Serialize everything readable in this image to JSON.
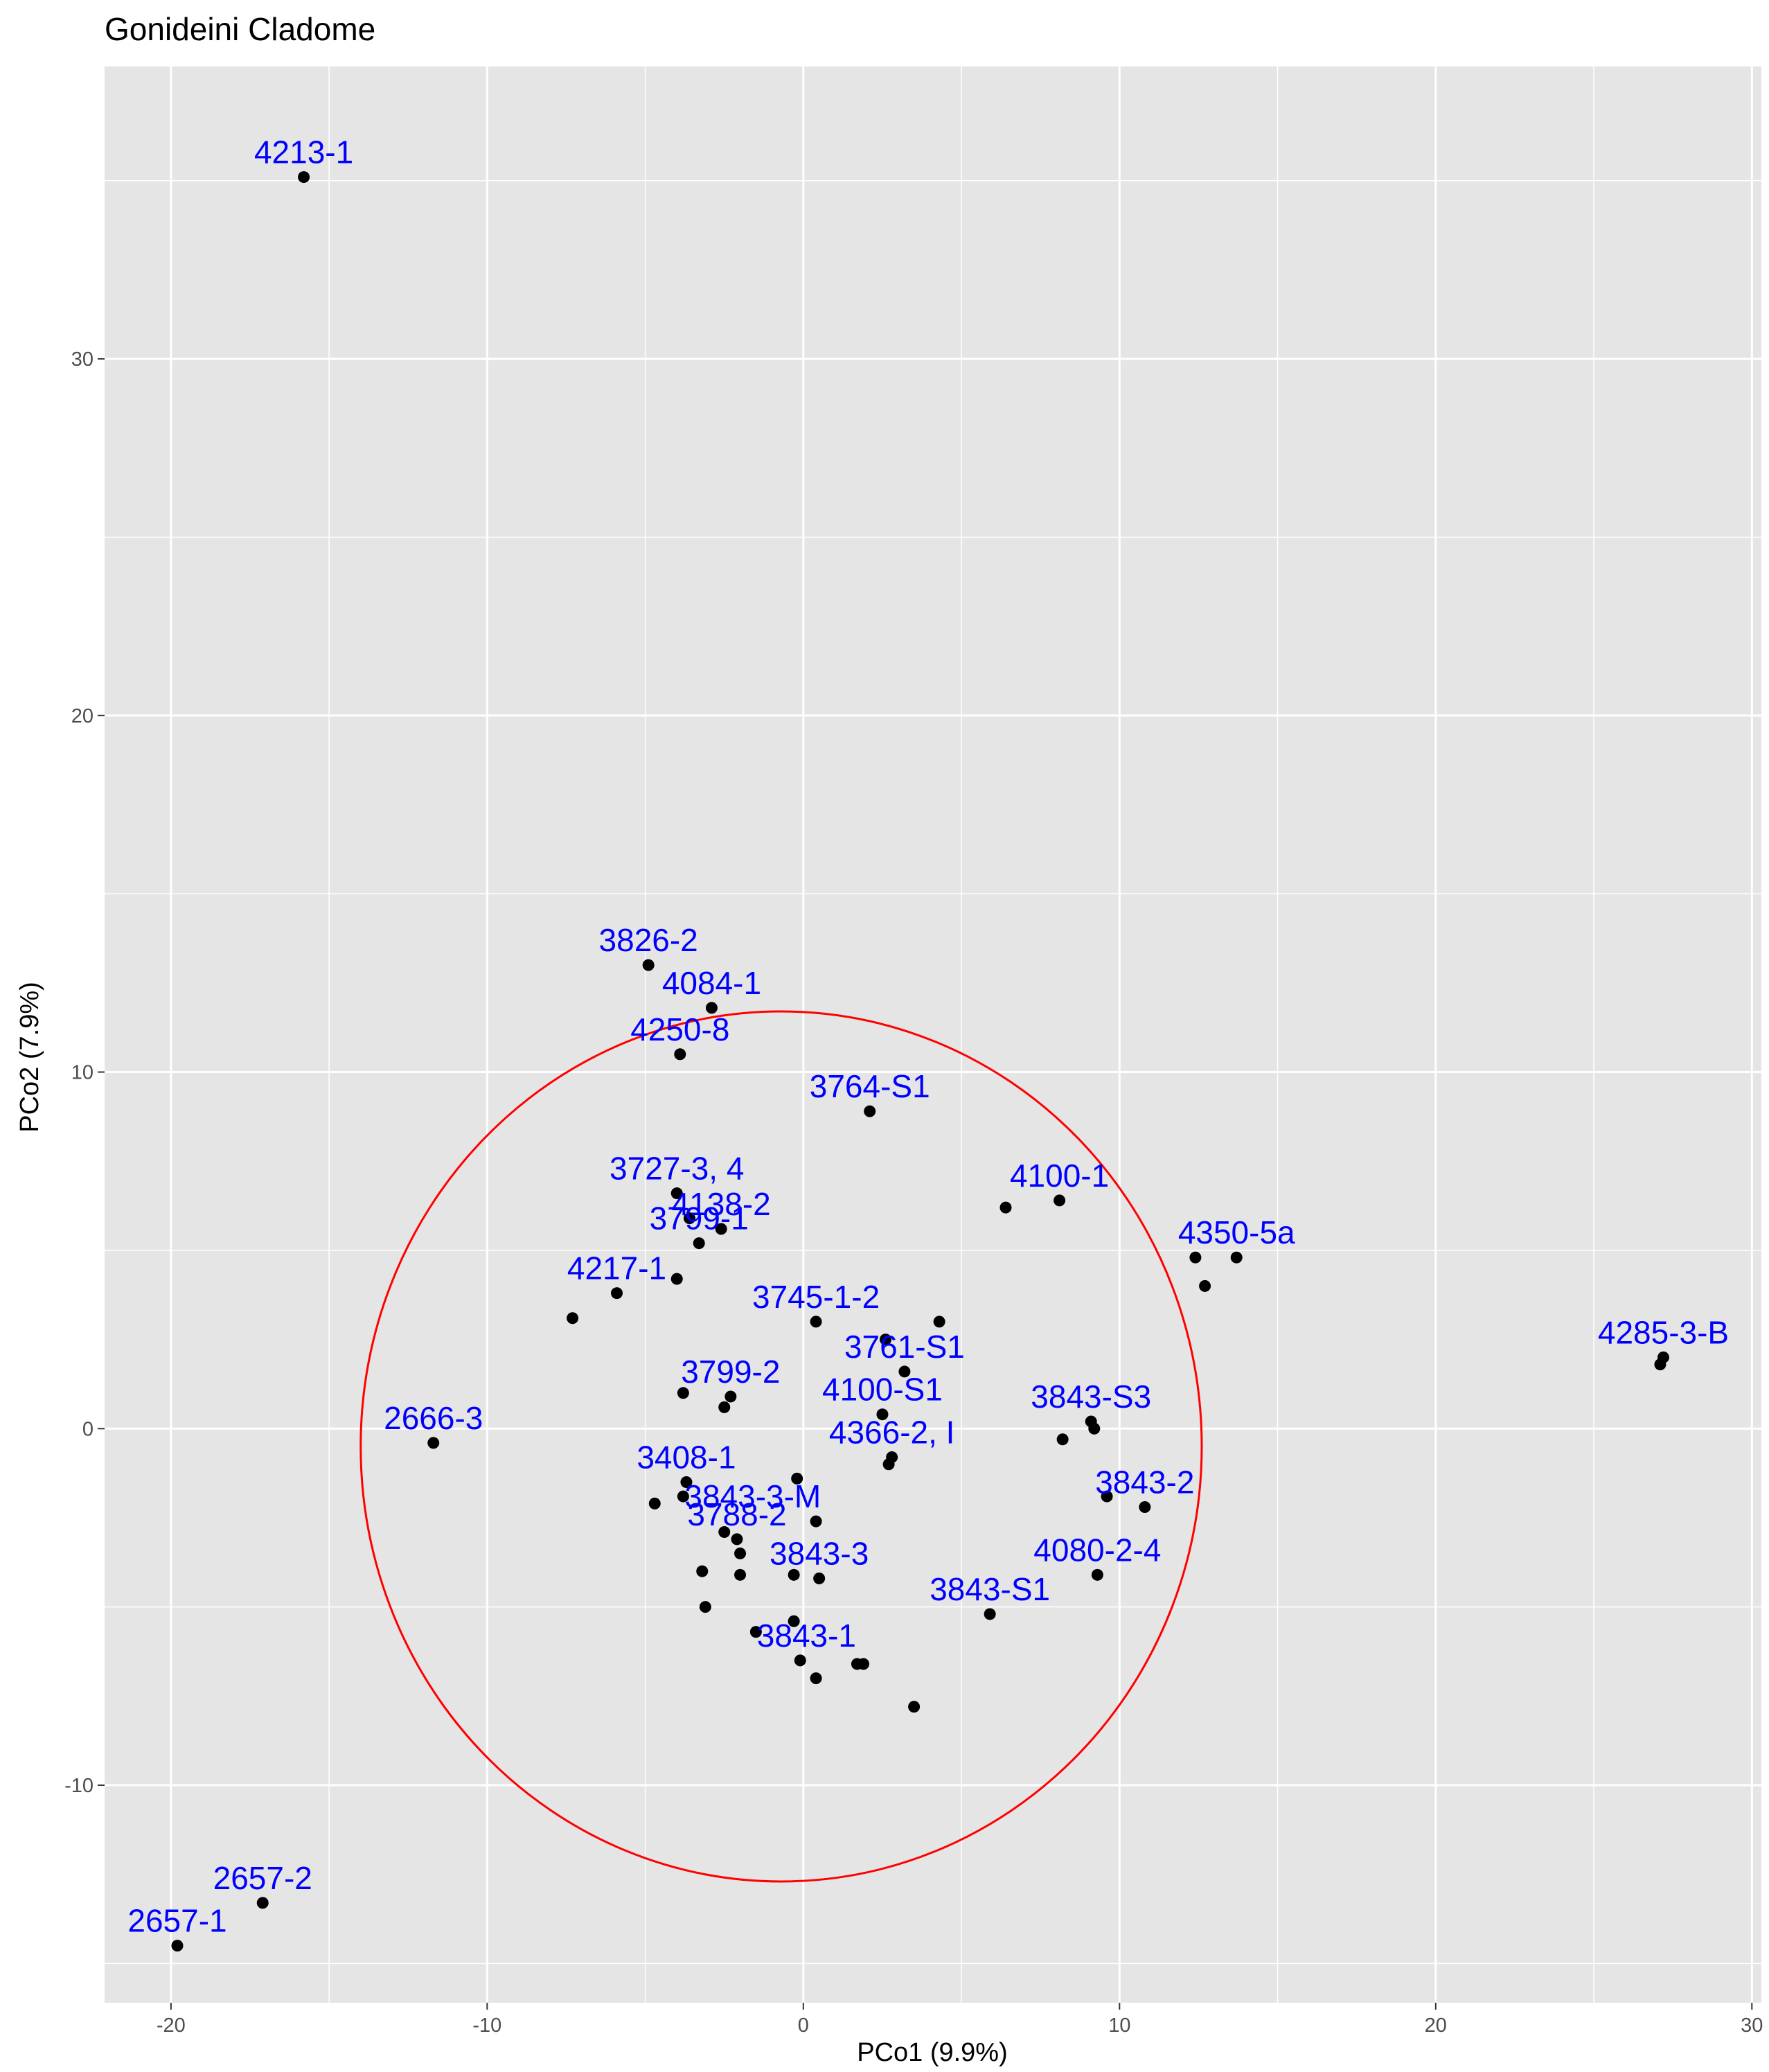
{
  "chart_data": {
    "type": "scatter",
    "title": "Gonideini Cladome",
    "xlabel": "PCo1 (9.9%)",
    "ylabel": "PCo2 (7.9%)",
    "xlim": [
      -22.1,
      30.3
    ],
    "ylim": [
      -16.1,
      38.2
    ],
    "x_ticks": [
      -20,
      -10,
      0,
      10,
      20,
      30
    ],
    "y_ticks": [
      -10,
      0,
      10,
      20,
      30
    ],
    "grid": true,
    "colors": {
      "panel": "#e5e5e5",
      "grid": "#ffffff",
      "point": "#000000",
      "label": "#0000ff",
      "ellipse": "#ff0000"
    },
    "ellipse": {
      "cx": -0.7,
      "cy": -0.5,
      "rx": 13.3,
      "ry": 12.2
    },
    "points": [
      {
        "x": -15.8,
        "y": 35.1
      },
      {
        "x": -4.9,
        "y": 13.0
      },
      {
        "x": -2.9,
        "y": 11.8
      },
      {
        "x": -3.9,
        "y": 10.5
      },
      {
        "x": 2.1,
        "y": 8.9
      },
      {
        "x": -4.0,
        "y": 6.6
      },
      {
        "x": -3.6,
        "y": 5.9
      },
      {
        "x": -2.6,
        "y": 5.6
      },
      {
        "x": -3.3,
        "y": 5.2
      },
      {
        "x": -4.0,
        "y": 4.2
      },
      {
        "x": -5.9,
        "y": 3.8
      },
      {
        "x": -7.3,
        "y": 3.1
      },
      {
        "x": 0.4,
        "y": 3.0
      },
      {
        "x": 4.3,
        "y": 3.0
      },
      {
        "x": 2.6,
        "y": 2.5
      },
      {
        "x": 3.2,
        "y": 1.6
      },
      {
        "x": -2.3,
        "y": 0.9
      },
      {
        "x": -3.8,
        "y": 1.0
      },
      {
        "x": -2.5,
        "y": 0.6
      },
      {
        "x": 2.5,
        "y": 0.4
      },
      {
        "x": 6.4,
        "y": 6.2
      },
      {
        "x": 8.1,
        "y": 6.4
      },
      {
        "x": 12.4,
        "y": 4.8
      },
      {
        "x": 13.7,
        "y": 4.8
      },
      {
        "x": 12.7,
        "y": 4.0
      },
      {
        "x": 27.2,
        "y": 2.0
      },
      {
        "x": 27.1,
        "y": 1.8
      },
      {
        "x": 9.1,
        "y": 0.2
      },
      {
        "x": 9.2,
        "y": 0.0
      },
      {
        "x": 8.2,
        "y": -0.3
      },
      {
        "x": 2.8,
        "y": -0.8
      },
      {
        "x": 2.7,
        "y": -1.0
      },
      {
        "x": -11.7,
        "y": -0.4
      },
      {
        "x": -3.7,
        "y": -1.5
      },
      {
        "x": -0.2,
        "y": -1.4
      },
      {
        "x": -4.7,
        "y": -2.1
      },
      {
        "x": -3.8,
        "y": -1.9
      },
      {
        "x": 0.4,
        "y": -2.6
      },
      {
        "x": -2.5,
        "y": -2.9
      },
      {
        "x": -2.1,
        "y": -3.1
      },
      {
        "x": -2.0,
        "y": -3.5
      },
      {
        "x": -3.2,
        "y": -4.0
      },
      {
        "x": -2.0,
        "y": -4.1
      },
      {
        "x": -0.3,
        "y": -4.1
      },
      {
        "x": 0.5,
        "y": -4.2
      },
      {
        "x": -3.1,
        "y": -5.0
      },
      {
        "x": -0.3,
        "y": -5.4
      },
      {
        "x": -1.5,
        "y": -5.7
      },
      {
        "x": -0.1,
        "y": -6.5
      },
      {
        "x": 1.7,
        "y": -6.6
      },
      {
        "x": 1.9,
        "y": -6.6
      },
      {
        "x": 0.4,
        "y": -7.0
      },
      {
        "x": 3.5,
        "y": -7.8
      },
      {
        "x": 5.9,
        "y": -5.2
      },
      {
        "x": 9.6,
        "y": -1.9
      },
      {
        "x": 10.8,
        "y": -2.2
      },
      {
        "x": 9.3,
        "y": -4.1
      },
      {
        "x": -17.1,
        "y": -13.3
      },
      {
        "x": -19.8,
        "y": -14.5
      }
    ],
    "labels": [
      {
        "text": "4213-1",
        "x": -15.8,
        "y": 35.1
      },
      {
        "text": "3826-2",
        "x": -4.9,
        "y": 13.0
      },
      {
        "text": "4084-1",
        "x": -2.9,
        "y": 11.8
      },
      {
        "text": "4250-8",
        "x": -3.9,
        "y": 10.5
      },
      {
        "text": "3764-S1",
        "x": 2.1,
        "y": 8.9
      },
      {
        "text": "3727-3, 4",
        "x": -4.0,
        "y": 6.6
      },
      {
        "text": "4138-2",
        "x": -2.6,
        "y": 5.6
      },
      {
        "text": "3799-1",
        "x": -3.3,
        "y": 5.2
      },
      {
        "text": "4217-1",
        "x": -5.9,
        "y": 3.8
      },
      {
        "text": "3745-1-2",
        "x": 0.4,
        "y": 3.0
      },
      {
        "text": "3761-S1",
        "x": 3.2,
        "y": 1.6
      },
      {
        "text": "3799-2",
        "x": -2.3,
        "y": 0.9
      },
      {
        "text": "4100-S1",
        "x": 2.5,
        "y": 0.4
      },
      {
        "text": "4100-1",
        "x": 8.1,
        "y": 6.4
      },
      {
        "text": "4350-5a",
        "x": 13.7,
        "y": 4.8
      },
      {
        "text": "4285-3-B",
        "x": 27.2,
        "y": 2.0
      },
      {
        "text": "3843-S3",
        "x": 9.1,
        "y": 0.2
      },
      {
        "text": "4366-2, I",
        "x": 2.8,
        "y": -0.8
      },
      {
        "text": "2666-3",
        "x": -11.7,
        "y": -0.4
      },
      {
        "text": "3408-1",
        "x": -3.7,
        "y": -1.5
      },
      {
        "text": "3843-3-M",
        "x": -1.6,
        "y": -2.6
      },
      {
        "text": "3788-2",
        "x": -2.1,
        "y": -3.1
      },
      {
        "text": "3843-3",
        "x": 0.5,
        "y": -4.2
      },
      {
        "text": "3843-1",
        "x": 0.1,
        "y": -6.5
      },
      {
        "text": "3843-S1",
        "x": 5.9,
        "y": -5.2
      },
      {
        "text": "3843-2",
        "x": 10.8,
        "y": -2.2
      },
      {
        "text": "4080-2-4",
        "x": 9.3,
        "y": -4.1
      },
      {
        "text": "2657-2",
        "x": -17.1,
        "y": -13.3
      },
      {
        "text": "2657-1",
        "x": -19.8,
        "y": -14.5
      }
    ]
  }
}
